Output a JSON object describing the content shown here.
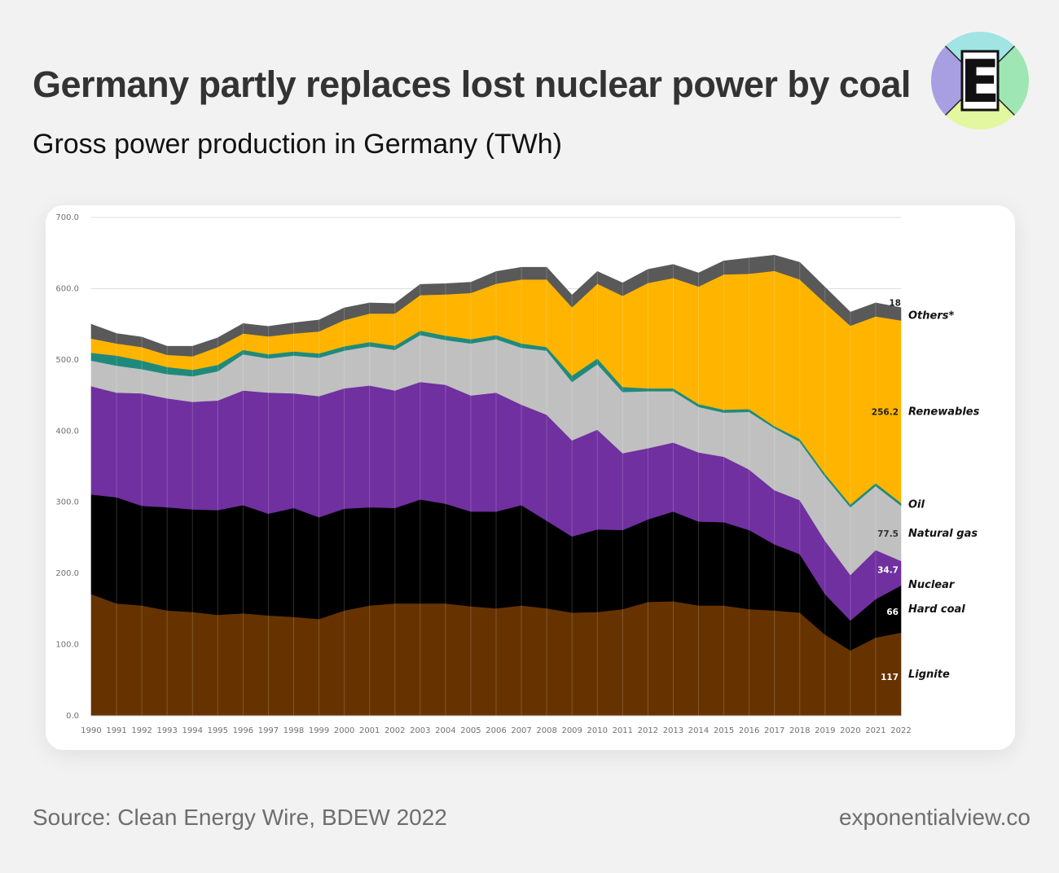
{
  "header": {
    "title": "Germany partly replaces lost nuclear power by coal",
    "subtitle": "Gross power production in Germany (TWh)",
    "logo_letter": "E"
  },
  "footer": {
    "source": "Source: Clean Energy Wire, BDEW 2022",
    "site": "exponentialview.co"
  },
  "chart_data": {
    "type": "area",
    "stacked": true,
    "x": [
      1990,
      1991,
      1992,
      1993,
      1994,
      1995,
      1996,
      1997,
      1998,
      1999,
      2000,
      2001,
      2002,
      2003,
      2004,
      2005,
      2006,
      2007,
      2008,
      2009,
      2010,
      2011,
      2012,
      2013,
      2014,
      2015,
      2016,
      2017,
      2018,
      2019,
      2020,
      2021,
      2022
    ],
    "ylim": [
      0,
      700
    ],
    "yticks": [
      "0.0",
      "100.0",
      "200.0",
      "300.0",
      "400.0",
      "500.0",
      "600.0",
      "700.0"
    ],
    "grid": true,
    "series": [
      {
        "name": "Lignite",
        "color": "#663300",
        "values": [
          171,
          158,
          155,
          148,
          146,
          142,
          144,
          141,
          139,
          136,
          148,
          155,
          158,
          158,
          158,
          154,
          151,
          155,
          151,
          145,
          146,
          150,
          160,
          161,
          155,
          155,
          150,
          148,
          145,
          114,
          92,
          110,
          117
        ]
      },
      {
        "name": "Hard coal",
        "color": "#000000",
        "values": [
          140,
          149,
          140,
          145,
          144,
          147,
          152,
          143,
          153,
          143,
          143,
          138,
          134,
          146,
          140,
          133,
          136,
          141,
          123,
          107,
          116,
          111,
          116,
          126,
          118,
          117,
          111,
          93,
          82,
          57,
          42,
          54,
          66
        ]
      },
      {
        "name": "Nuclear",
        "color": "#7030a0",
        "values": [
          152,
          147,
          158,
          153,
          151,
          154,
          161,
          170,
          161,
          170,
          169,
          171,
          165,
          165,
          167,
          163,
          167,
          141,
          149,
          135,
          140,
          108,
          100,
          97,
          97,
          92,
          85,
          76,
          76,
          75,
          64,
          69,
          34.7
        ]
      },
      {
        "name": "Natural gas",
        "color": "#c0c0c0",
        "values": [
          36,
          38,
          34,
          34,
          36,
          41,
          51,
          48,
          53,
          54,
          53,
          55,
          57,
          66,
          63,
          73,
          75,
          80,
          90,
          82,
          92,
          86,
          80,
          72,
          64,
          62,
          81,
          87,
          82,
          90,
          95,
          90,
          77.5
        ]
      },
      {
        "name": "Oil",
        "color": "#1f8a7c",
        "values": [
          11,
          14,
          12,
          10,
          9,
          9,
          6,
          6,
          6,
          6,
          6,
          6,
          6,
          6,
          6,
          6,
          6,
          6,
          5,
          9,
          8,
          7,
          4,
          4,
          4,
          4,
          4,
          3,
          4,
          4,
          4,
          4,
          4
        ]
      },
      {
        "name": "Renewables",
        "color": "#ffb400",
        "values": [
          20,
          17,
          19,
          17,
          19,
          25,
          23,
          25,
          25,
          31,
          37,
          40,
          45,
          50,
          58,
          65,
          72,
          90,
          95,
          96,
          105,
          128,
          148,
          155,
          165,
          190,
          190,
          218,
          224,
          240,
          251,
          234,
          256.2
        ]
      },
      {
        "name": "Others*",
        "color": "#595959",
        "values": [
          20,
          14,
          14,
          12,
          14,
          13,
          14,
          14,
          15,
          16,
          17,
          15,
          14,
          15,
          15,
          15,
          17,
          17,
          17,
          17,
          17,
          18,
          19,
          19,
          19,
          19,
          22,
          22,
          24,
          22,
          19,
          19,
          18
        ]
      }
    ],
    "value_labels": [
      {
        "series": "Others*",
        "text": "18"
      },
      {
        "series": "Renewables",
        "text": "256.2"
      },
      {
        "series": "Natural gas",
        "text": "77.5"
      },
      {
        "series": "Nuclear",
        "text": "34.7"
      },
      {
        "series": "Hard coal",
        "text": "66"
      },
      {
        "series": "Lignite",
        "text": "117"
      }
    ]
  }
}
